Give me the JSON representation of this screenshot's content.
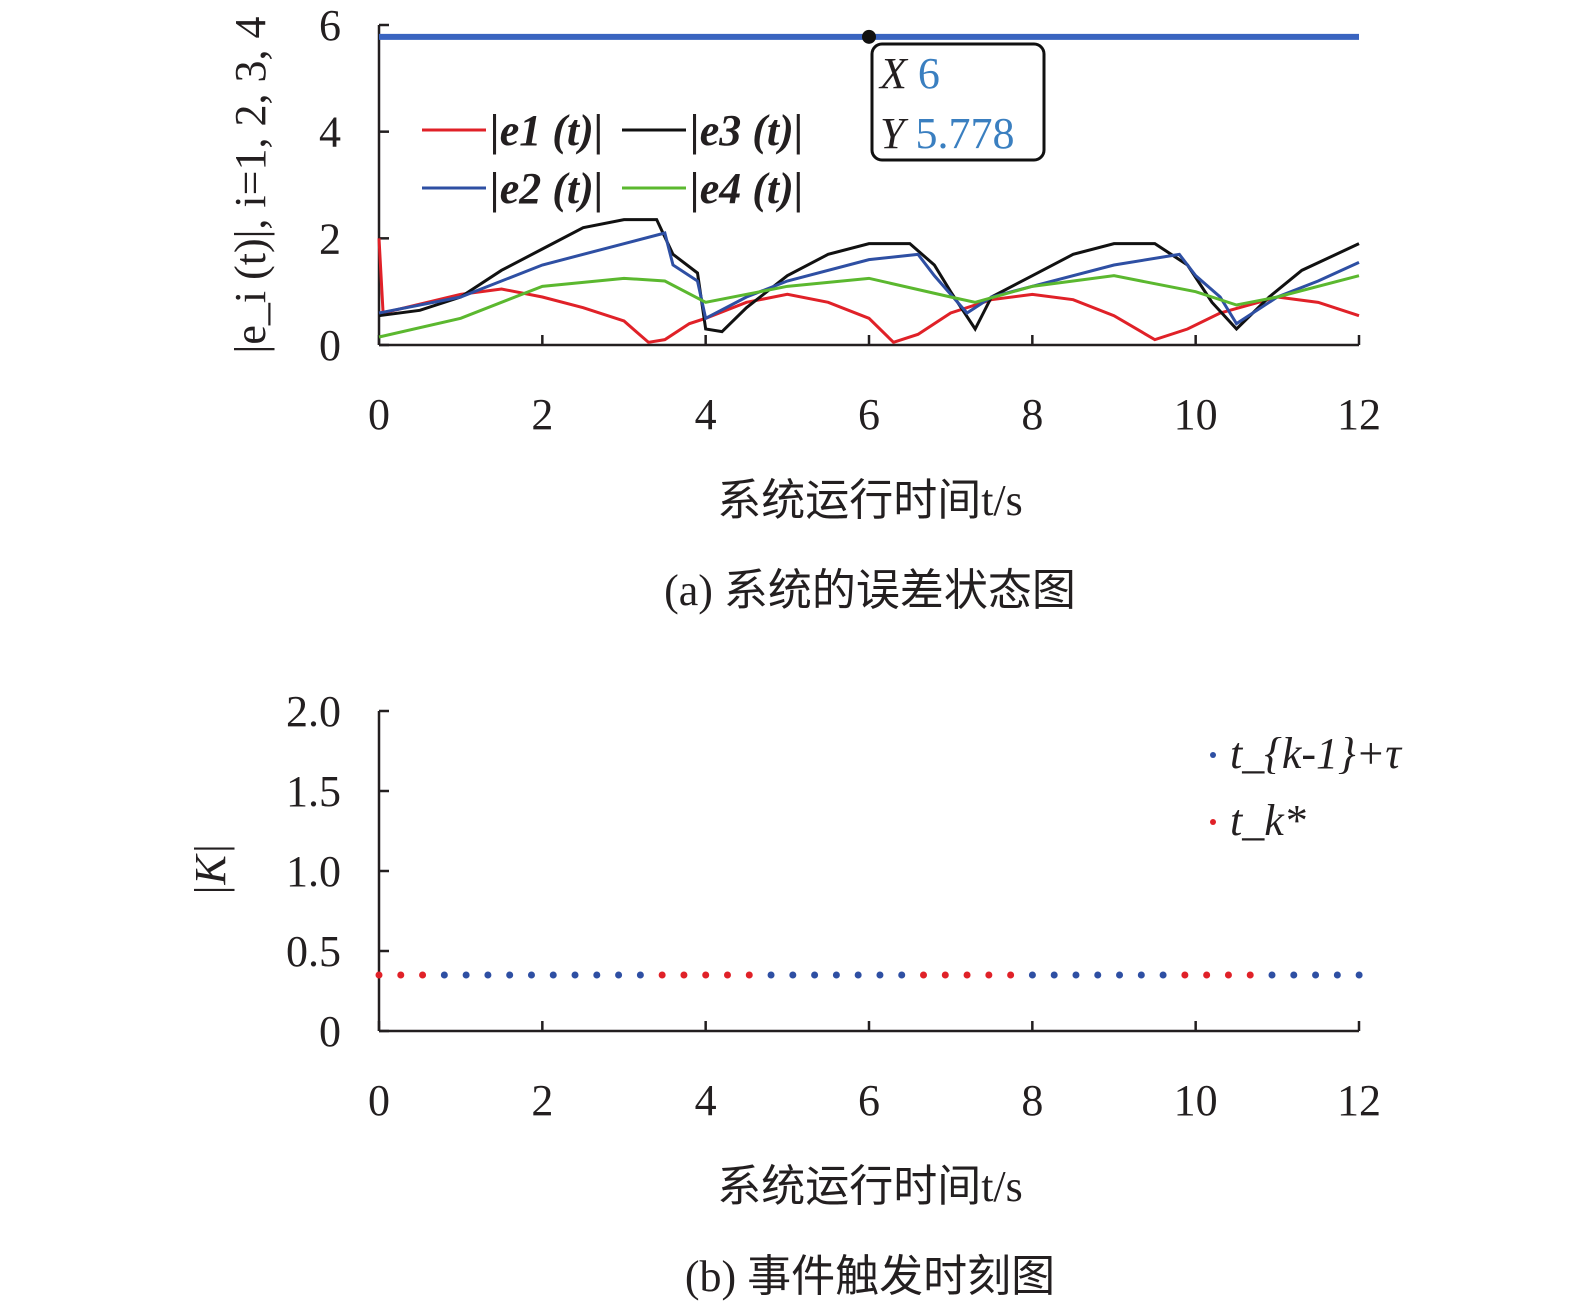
{
  "chart_data": [
    {
      "type": "line",
      "caption": "(a) 系统的误差状态图",
      "xlabel": "系统运行时间t/s",
      "ylabel": "|e_i (t)|, i=1, 2, 3, 4",
      "xlim": [
        0,
        12
      ],
      "ylim": [
        0,
        6
      ],
      "xticks": [
        "0",
        "2",
        "4",
        "6",
        "8",
        "10",
        "12"
      ],
      "yticks": [
        "0",
        "2",
        "4",
        "6"
      ],
      "legend": [
        "|e1 (t)|",
        "|e3 (t)|",
        "|e2 (t)|",
        "|e4 (t)|"
      ],
      "legend_placement": "upper-left",
      "tooltip": {
        "x_label": "X",
        "x_value": "6",
        "y_label": "Y",
        "y_value": "5.778"
      },
      "series": [
        {
          "name": "|e1 (t)|",
          "color": "#e02128",
          "points": [
            [
              0,
              2.0
            ],
            [
              0.05,
              0.6
            ],
            [
              1,
              0.95
            ],
            [
              1.5,
              1.05
            ],
            [
              2,
              0.9
            ],
            [
              2.5,
              0.7
            ],
            [
              3,
              0.45
            ],
            [
              3.3,
              0.05
            ],
            [
              3.5,
              0.1
            ],
            [
              3.8,
              0.4
            ],
            [
              4,
              0.5
            ],
            [
              4.5,
              0.8
            ],
            [
              5,
              0.95
            ],
            [
              5.5,
              0.8
            ],
            [
              6,
              0.5
            ],
            [
              6.3,
              0.05
            ],
            [
              6.6,
              0.2
            ],
            [
              7,
              0.6
            ],
            [
              7.5,
              0.85
            ],
            [
              8,
              0.95
            ],
            [
              8.5,
              0.85
            ],
            [
              9,
              0.55
            ],
            [
              9.5,
              0.1
            ],
            [
              9.9,
              0.3
            ],
            [
              10.3,
              0.6
            ],
            [
              11,
              0.9
            ],
            [
              11.5,
              0.8
            ],
            [
              12,
              0.55
            ]
          ]
        },
        {
          "name": "|e3 (t)|",
          "color": "#111111",
          "points": [
            [
              0,
              0.55
            ],
            [
              0.5,
              0.65
            ],
            [
              1,
              0.9
            ],
            [
              1.5,
              1.4
            ],
            [
              2,
              1.8
            ],
            [
              2.5,
              2.2
            ],
            [
              3,
              2.35
            ],
            [
              3.4,
              2.35
            ],
            [
              3.6,
              1.7
            ],
            [
              3.9,
              1.35
            ],
            [
              4,
              0.3
            ],
            [
              4.2,
              0.25
            ],
            [
              4.5,
              0.7
            ],
            [
              5,
              1.3
            ],
            [
              5.5,
              1.7
            ],
            [
              6,
              1.9
            ],
            [
              6.5,
              1.9
            ],
            [
              6.8,
              1.5
            ],
            [
              7,
              1.0
            ],
            [
              7.3,
              0.3
            ],
            [
              7.5,
              0.9
            ],
            [
              8,
              1.3
            ],
            [
              8.5,
              1.7
            ],
            [
              9,
              1.9
            ],
            [
              9.5,
              1.9
            ],
            [
              9.9,
              1.5
            ],
            [
              10.2,
              0.8
            ],
            [
              10.5,
              0.3
            ],
            [
              10.9,
              0.9
            ],
            [
              11.3,
              1.4
            ],
            [
              12,
              1.9
            ]
          ]
        },
        {
          "name": "|e2 (t)|",
          "color": "#2e4fa3",
          "points": [
            [
              0,
              0.6
            ],
            [
              1,
              0.9
            ],
            [
              2,
              1.5
            ],
            [
              3,
              1.9
            ],
            [
              3.5,
              2.1
            ],
            [
              3.6,
              1.5
            ],
            [
              3.9,
              1.2
            ],
            [
              4,
              0.5
            ],
            [
              4.5,
              0.9
            ],
            [
              5,
              1.2
            ],
            [
              6,
              1.6
            ],
            [
              6.6,
              1.7
            ],
            [
              6.8,
              1.3
            ],
            [
              7.2,
              0.6
            ],
            [
              7.5,
              0.9
            ],
            [
              8,
              1.1
            ],
            [
              9,
              1.5
            ],
            [
              9.8,
              1.7
            ],
            [
              10,
              1.3
            ],
            [
              10.3,
              0.9
            ],
            [
              10.5,
              0.4
            ],
            [
              11,
              0.9
            ],
            [
              11.5,
              1.2
            ],
            [
              12,
              1.55
            ]
          ]
        },
        {
          "name": "|e4 (t)|",
          "color": "#5bb82f",
          "points": [
            [
              0,
              0.15
            ],
            [
              1,
              0.5
            ],
            [
              2,
              1.1
            ],
            [
              3,
              1.25
            ],
            [
              3.5,
              1.2
            ],
            [
              4,
              0.8
            ],
            [
              5,
              1.1
            ],
            [
              6,
              1.25
            ],
            [
              7,
              0.9
            ],
            [
              7.3,
              0.8
            ],
            [
              8,
              1.1
            ],
            [
              9,
              1.3
            ],
            [
              10,
              1.0
            ],
            [
              10.5,
              0.75
            ],
            [
              11,
              0.9
            ],
            [
              12,
              1.3
            ]
          ]
        },
        {
          "name": "marker-line",
          "color": "#3a64c0",
          "points": [
            [
              0,
              5.778
            ],
            [
              12,
              5.778
            ]
          ]
        }
      ]
    },
    {
      "type": "scatter",
      "caption": "(b) 事件触发时刻图",
      "xlabel": "系统运行时间t/s",
      "ylabel": "|K|",
      "xlim": [
        0,
        12
      ],
      "ylim": [
        0,
        2
      ],
      "xticks": [
        "0",
        "2",
        "4",
        "6",
        "8",
        "10",
        "12"
      ],
      "yticks": [
        "0",
        "0.5",
        "1.0",
        "1.5",
        "2.0"
      ],
      "legend": [
        "t_{k-1}+τ",
        "t_k*"
      ],
      "legend_placement": "top-right",
      "y_value": 0.35,
      "dot_step": 0.2667,
      "dot_count": 46,
      "red_ranges": [
        [
          0,
          0.8
        ],
        [
          3.4,
          4.6
        ],
        [
          6.6,
          7.8
        ],
        [
          9.8,
          10.9
        ]
      ],
      "colors": {
        "blue": "#2e4fa3",
        "red": "#e02128"
      }
    }
  ]
}
